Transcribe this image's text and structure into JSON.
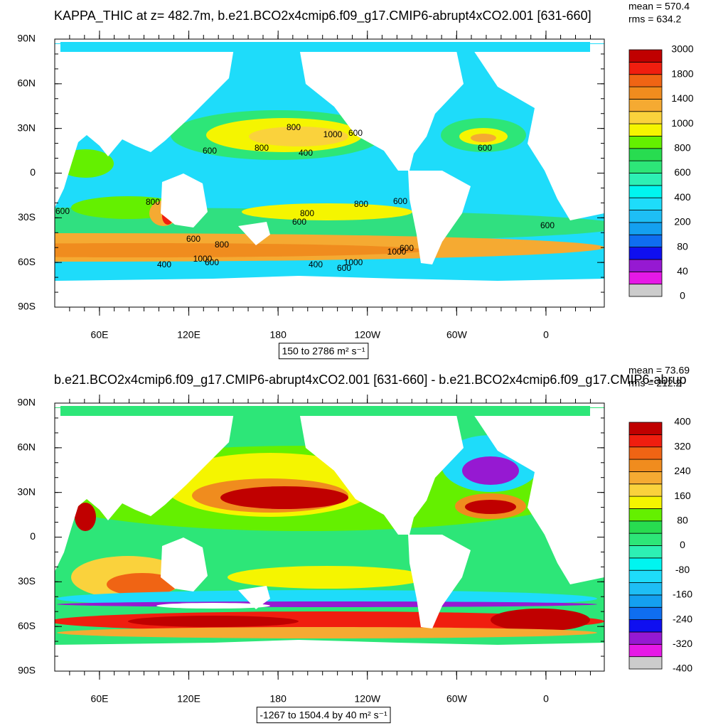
{
  "panels": [
    {
      "title": "KAPPA_THIC at z= 482.7m, b.e21.BCO2x4cmip6.f09_g17.CMIP6-abrupt4xCO2.001 [631-660]",
      "stats": [
        "mean = 570.4",
        "rms = 634.2"
      ],
      "lat_labels": [
        "90N",
        "60N",
        "30N",
        "0",
        "30S",
        "60S",
        "90S"
      ],
      "lon_labels": [
        "60E",
        "120E",
        "180",
        "120W",
        "60W",
        "0"
      ],
      "range_label": "150 to 2786 m² s⁻¹",
      "colorbar_labels": [
        "3000",
        "1800",
        "1400",
        "1000",
        "800",
        "600",
        "400",
        "200",
        "80",
        "40",
        "0"
      ],
      "contour_labels": [
        "800",
        "1000",
        "600",
        "600",
        "800",
        "400",
        "600",
        "800",
        "800",
        "600",
        "800",
        "600",
        "600",
        "600",
        "800",
        "1000",
        "600",
        "1000",
        "600",
        "400",
        "400",
        "1000",
        "600",
        "600"
      ]
    },
    {
      "title": "b.e21.BCO2x4cmip6.f09_g17.CMIP6-abrupt4xCO2.001 [631-660] - b.e21.BCO2x4cmip6.f09_g17.CMIP6-abrup",
      "stats": [
        "mean = 73.69",
        "rms = 212.2"
      ],
      "lat_labels": [
        "90N",
        "60N",
        "30N",
        "0",
        "30S",
        "60S",
        "90S"
      ],
      "lon_labels": [
        "60E",
        "120E",
        "180",
        "120W",
        "60W",
        "0"
      ],
      "range_label": "-1267 to 1504.4 by 40 m² s⁻¹",
      "colorbar_labels": [
        "400",
        "320",
        "240",
        "160",
        "80",
        "0",
        "-80",
        "-160",
        "-240",
        "-320",
        "-400"
      ],
      "contour_labels": []
    }
  ],
  "colorbar_colors": [
    "#6e6e6e",
    "#cccccc",
    "#e619e6",
    "#9619d2",
    "#0f0ff0",
    "#0f6ef0",
    "#14a0f0",
    "#1ebef5",
    "#1edcfa",
    "#00f5f0",
    "#2df0b4",
    "#2de678",
    "#28dc50",
    "#64f000",
    "#f5f500",
    "#fad23c",
    "#f5aa32",
    "#f08c1e",
    "#f06414",
    "#f01e0f",
    "#c00000"
  ]
}
